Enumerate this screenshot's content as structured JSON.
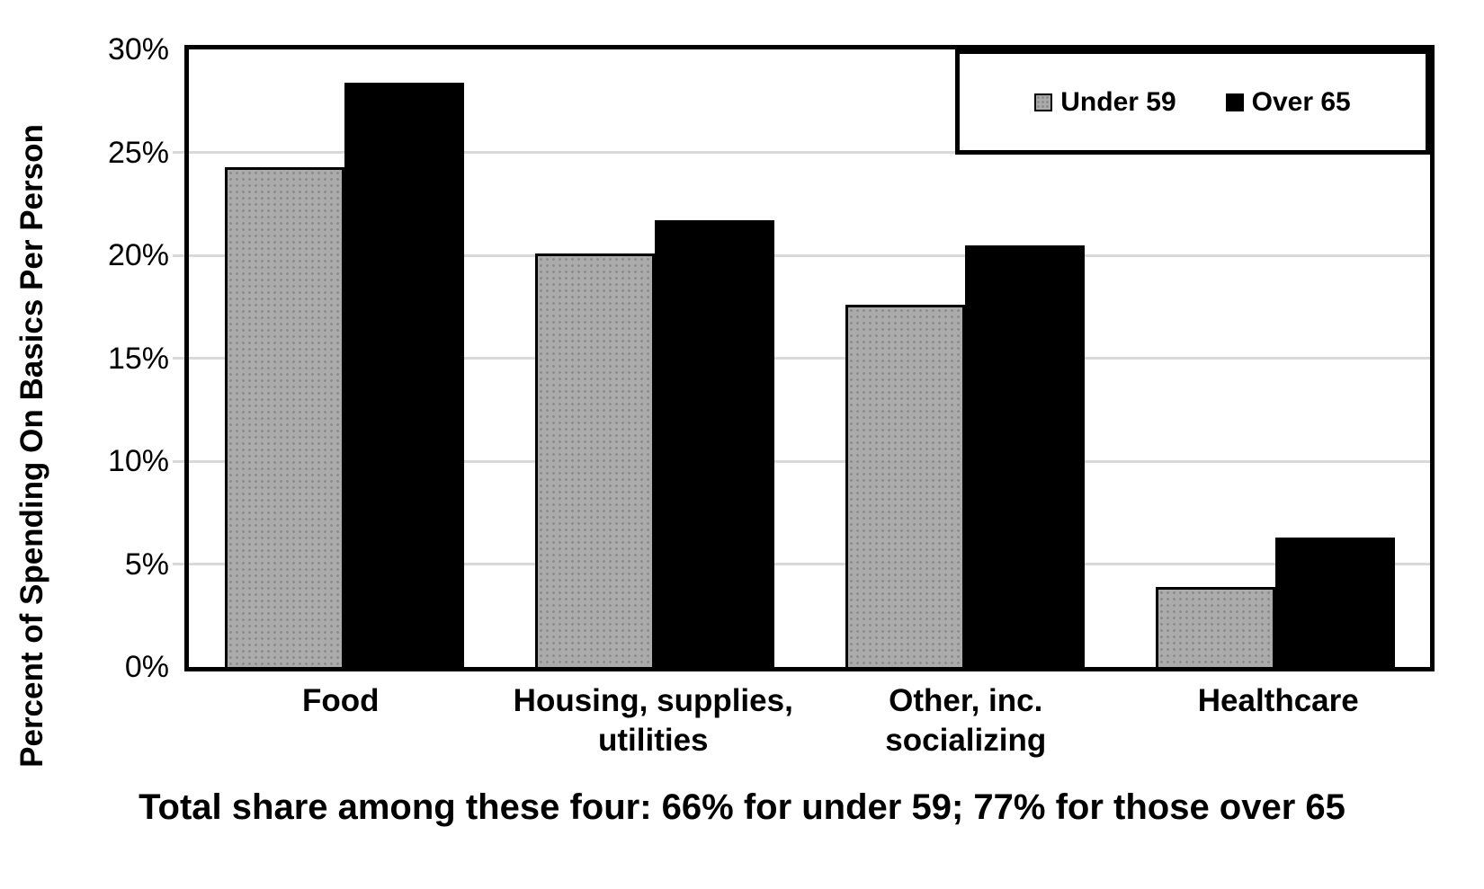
{
  "figure": {
    "background_color": "#ffffff",
    "axis_color": "#000000",
    "gridline_color": "#d9d9d9"
  },
  "chart_data": {
    "type": "bar",
    "title": "Total share among these four: 66% for under 59; 77% for those over 65",
    "ylabel": "Percent of Spending On Basics Per Person",
    "xlabel": "",
    "categories": [
      "Food",
      "Housing, supplies,\nutilities",
      "Other, inc.\nsocializing",
      "Healthcare"
    ],
    "series": [
      {
        "name": "Under 59",
        "values": [
          24.3,
          20.1,
          17.6,
          3.9
        ],
        "fill": "#ababab",
        "pattern": "dotted"
      },
      {
        "name": "Over 65",
        "values": [
          28.4,
          21.7,
          20.5,
          6.3
        ],
        "fill": "#000000",
        "pattern": "solid"
      }
    ],
    "ylim": [
      0,
      30
    ],
    "ytick_step": 5,
    "ytick_labels": [
      "0%",
      "5%",
      "10%",
      "15%",
      "20%",
      "25%",
      "30%"
    ],
    "grid": true,
    "legend_position": "top-right"
  }
}
